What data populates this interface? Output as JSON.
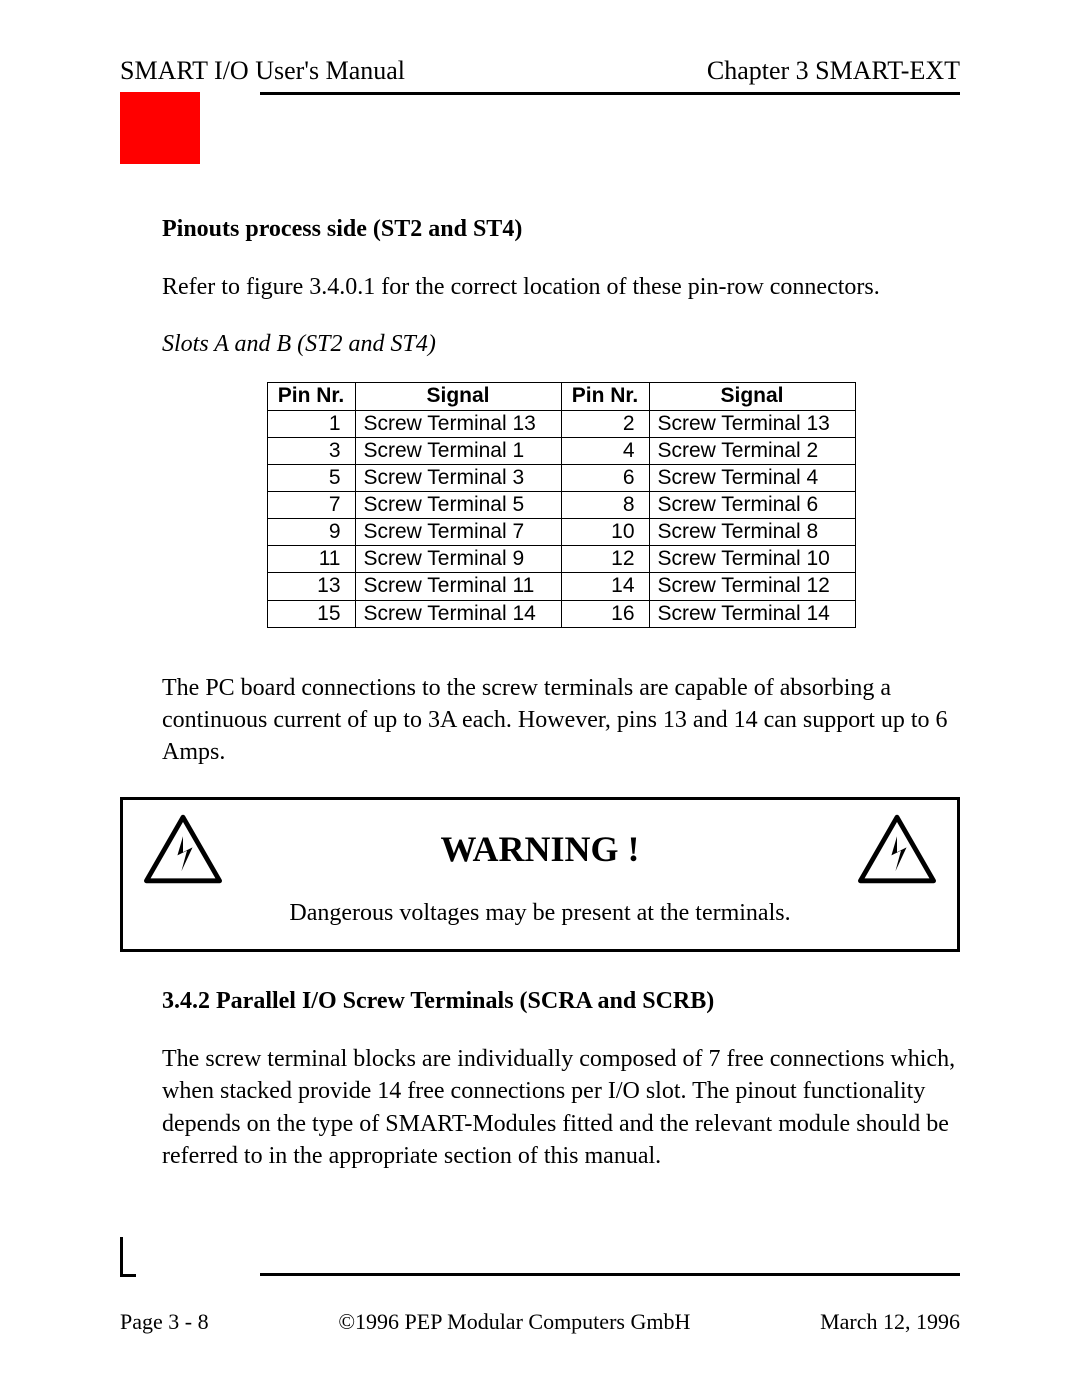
{
  "header": {
    "left": "SMART I/O User's Manual",
    "right": "Chapter 3  SMART-EXT"
  },
  "accent_color": "#ff0000",
  "section1": {
    "heading": "Pinouts process side (ST2 and ST4)",
    "intro": "Refer to figure 3.4.0.1 for the correct location of these pin-row connectors.",
    "subhead_italic": "Slots A and B (ST2 and ST4)"
  },
  "pin_table": {
    "headers": [
      "Pin  Nr.",
      "Signal",
      "Pin  Nr.",
      "Signal"
    ],
    "header_fontsize": 21,
    "cell_fontsize": 21,
    "border_color": "#000000",
    "rows": [
      [
        "1",
        "Screw Terminal 13",
        "2",
        "Screw Terminal 13"
      ],
      [
        "3",
        "Screw Terminal 1",
        "4",
        "Screw Terminal 2"
      ],
      [
        "5",
        "Screw Terminal 3",
        "6",
        "Screw Terminal 4"
      ],
      [
        "7",
        "Screw Terminal 5",
        "8",
        "Screw Terminal 6"
      ],
      [
        "9",
        "Screw Terminal 7",
        "10",
        "Screw Terminal 8"
      ],
      [
        "11",
        "Screw Terminal 9",
        "12",
        "Screw Terminal 10"
      ],
      [
        "13",
        "Screw Terminal 11",
        "14",
        "Screw Terminal 12"
      ],
      [
        "15",
        "Screw Terminal 14",
        "16",
        "Screw Terminal 14"
      ]
    ]
  },
  "after_table_para": "The PC board connections to the screw terminals are capable of absorbing a continuous current of up to 3A each. However, pins 13 and 14 can support up to 6 Amps.",
  "warning": {
    "title": "WARNING !",
    "text": "Dangerous voltages may be present at the terminals.",
    "title_fontsize": 36,
    "border_color": "#000000"
  },
  "section2": {
    "heading": "3.4.2 Parallel I/O Screw Terminals (SCRA and SCRB)",
    "para": "The screw terminal blocks are individually composed of 7 free connections which, when stacked provide 14 free connections per I/O slot. The pinout functionality depends on the type of SMART-Modules fitted and the relevant module should be referred to in the appropriate section of this manual."
  },
  "footer": {
    "left": "Page 3 - 8",
    "center": "©1996 PEP Modular Computers GmbH",
    "right": "March 12, 1996"
  }
}
